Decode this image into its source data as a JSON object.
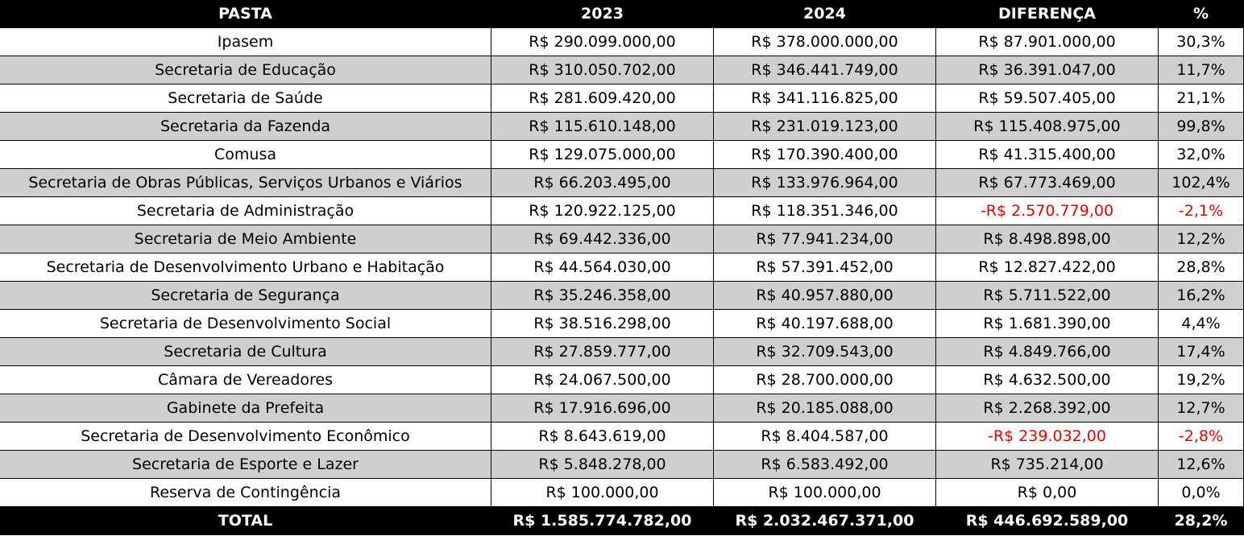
{
  "table": {
    "header": [
      "PASTA",
      "2023",
      "2024",
      "DIFERENÇA",
      "%"
    ],
    "rows": [
      [
        "Ipasem",
        "R$ 290.099.000,00",
        "R$ 378.000.000,00",
        "R$ 87.901.000,00",
        "30,3%"
      ],
      [
        "Secretaria de Educação",
        "R$ 310.050.702,00",
        "R$ 346.441.749,00",
        "R$ 36.391.047,00",
        "11,7%"
      ],
      [
        "Secretaria de Saúde",
        "R$ 281.609.420,00",
        "R$ 341.116.825,00",
        "R$ 59.507.405,00",
        "21,1%"
      ],
      [
        "Secretaria da Fazenda",
        "R$ 115.610.148,00",
        "R$ 231.019.123,00",
        "R$ 115.408.975,00",
        "99,8%"
      ],
      [
        "Comusa",
        "R$ 129.075.000,00",
        "R$ 170.390.400,00",
        "R$ 41.315.400,00",
        "32,0%"
      ],
      [
        "Secretaria de Obras Públicas, Serviços Urbanos e Viários",
        "R$ 66.203.495,00",
        "R$ 133.976.964,00",
        "R$ 67.773.469,00",
        "102,4%"
      ],
      [
        "Secretaria de Administração",
        "R$ 120.922.125,00",
        "R$ 118.351.346,00",
        "-R$ 2.570.779,00",
        "-2,1%"
      ],
      [
        "Secretaria de Meio Ambiente",
        "R$ 69.442.336,00",
        "R$ 77.941.234,00",
        "R$ 8.498.898,00",
        "12,2%"
      ],
      [
        "Secretaria de Desenvolvimento Urbano e Habitação",
        "R$ 44.564.030,00",
        "R$ 57.391.452,00",
        "R$ 12.827.422,00",
        "28,8%"
      ],
      [
        "Secretaria de Segurança",
        "R$ 35.246.358,00",
        "R$ 40.957.880,00",
        "R$ 5.711.522,00",
        "16,2%"
      ],
      [
        "Secretaria de Desenvolvimento Social",
        "R$ 38.516.298,00",
        "R$ 40.197.688,00",
        "R$ 1.681.390,00",
        "4,4%"
      ],
      [
        "Secretaria de Cultura",
        "R$ 27.859.777,00",
        "R$ 32.709.543,00",
        "R$ 4.849.766,00",
        "17,4%"
      ],
      [
        "Câmara de Vereadores",
        "R$ 24.067.500,00",
        "R$ 28.700.000,00",
        "R$ 4.632.500,00",
        "19,2%"
      ],
      [
        "Gabinete da Prefeita",
        "R$ 17.916.696,00",
        "R$ 20.185.088,00",
        "R$ 2.268.392,00",
        "12,7%"
      ],
      [
        "Secretaria de Desenvolvimento Econômico",
        "R$ 8.643.619,00",
        "R$ 8.404.587,00",
        "-R$ 239.032,00",
        "-2,8%"
      ],
      [
        "Secretaria de Esporte e Lazer",
        "R$ 5.848.278,00",
        "R$ 6.583.492,00",
        "R$ 735.214,00",
        "12,6%"
      ],
      [
        "Reserva de Contingência",
        "R$ 100.000,00",
        "R$ 100.000,00",
        "R$ 0,00",
        "0,0%"
      ]
    ],
    "total": [
      "TOTAL",
      "R$ 1.585.774.782,00",
      "R$ 2.032.467.371,00",
      "R$ 446.692.589,00",
      "28,2%"
    ]
  }
}
